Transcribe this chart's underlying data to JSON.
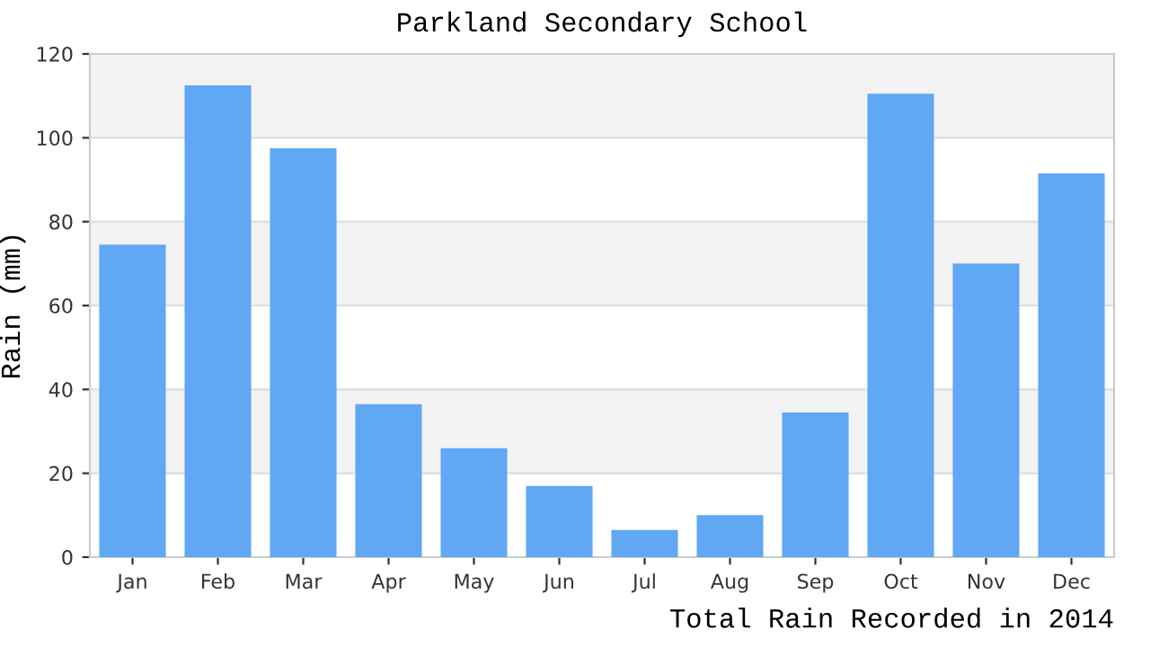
{
  "chart_data": {
    "type": "bar",
    "title": "Parkland Secondary School",
    "xlabel": "Total Rain Recorded in 2014",
    "ylabel": "Rain (mm)",
    "categories": [
      "Jan",
      "Feb",
      "Mar",
      "Apr",
      "May",
      "Jun",
      "Jul",
      "Aug",
      "Sep",
      "Oct",
      "Nov",
      "Dec"
    ],
    "values": [
      74.5,
      112.5,
      97.5,
      36.5,
      26,
      17,
      6.5,
      10,
      34.5,
      110.5,
      70,
      91.5
    ],
    "color": "#60a8f4",
    "ylim": [
      0,
      120
    ],
    "yticks": [
      0,
      20,
      40,
      60,
      80,
      100,
      120
    ],
    "grid": "y",
    "bands": [
      {
        "axis": "y",
        "from": 20,
        "to": 40,
        "color": "#f3f3f3"
      },
      {
        "axis": "y",
        "from": 60,
        "to": 80,
        "color": "#f3f3f3"
      },
      {
        "axis": "y",
        "from": 100,
        "to": 120,
        "color": "#f3f3f3"
      }
    ]
  }
}
